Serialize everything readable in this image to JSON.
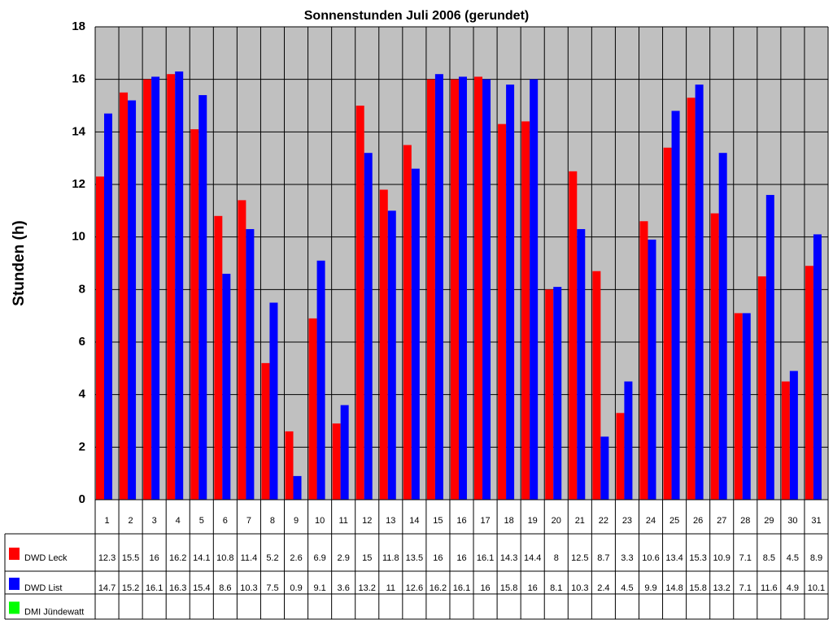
{
  "chart_data": {
    "type": "bar",
    "title": "Sonnenstunden Juli 2006 (gerundet)",
    "y_label": "Stunden (h)",
    "categories": [
      "1",
      "2",
      "3",
      "4",
      "5",
      "6",
      "7",
      "8",
      "9",
      "10",
      "11",
      "12",
      "13",
      "14",
      "15",
      "16",
      "17",
      "18",
      "19",
      "20",
      "21",
      "22",
      "23",
      "24",
      "25",
      "26",
      "27",
      "28",
      "29",
      "30",
      "31"
    ],
    "series": [
      {
        "name": "DWD Leck",
        "color": "#ff0000",
        "values": [
          12.3,
          15.5,
          16,
          16.2,
          14.1,
          10.8,
          11.4,
          5.2,
          2.6,
          6.9,
          2.9,
          15,
          11.8,
          13.5,
          16,
          16,
          16.1,
          14.3,
          14.4,
          8,
          12.5,
          8.7,
          3.3,
          10.6,
          13.4,
          15.3,
          10.9,
          7.1,
          8.5,
          4.5,
          8.9
        ]
      },
      {
        "name": "DWD List",
        "color": "#0000ff",
        "values": [
          14.7,
          15.2,
          16.1,
          16.3,
          15.4,
          8.6,
          10.3,
          7.5,
          0.9,
          9.1,
          3.6,
          13.2,
          11,
          12.6,
          16.2,
          16.1,
          16,
          15.8,
          16,
          8.1,
          10.3,
          2.4,
          4.5,
          9.9,
          14.8,
          15.8,
          13.2,
          7.1,
          11.6,
          4.9,
          10.1
        ]
      },
      {
        "name": "DMI Jündewatt",
        "color": "#00ff00",
        "values": [
          null,
          null,
          null,
          null,
          null,
          null,
          null,
          null,
          null,
          null,
          null,
          null,
          null,
          null,
          null,
          null,
          null,
          null,
          null,
          null,
          null,
          null,
          null,
          null,
          null,
          null,
          null,
          null,
          null,
          null,
          null
        ]
      }
    ],
    "ylim": [
      0,
      18
    ],
    "yticks": [
      0,
      2,
      4,
      6,
      8,
      10,
      12,
      14,
      16,
      18
    ],
    "grid": true,
    "plot_background": "#c0c0c0"
  }
}
